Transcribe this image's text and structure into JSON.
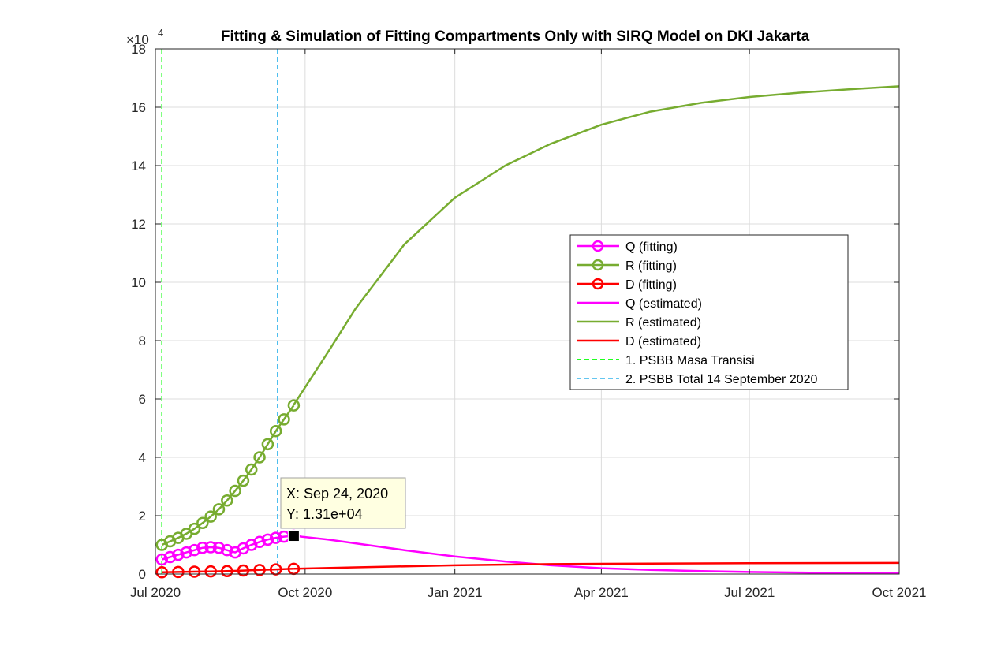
{
  "chart_data": {
    "type": "line",
    "title": "Fitting & Simulation of Fitting Compartments Only with SIRQ Model on DKI Jakarta",
    "xlabel": "",
    "ylabel": "",
    "y_exponent_label": "×10",
    "y_exponent_power": "4",
    "x_range": [
      "2020-07-01",
      "2021-10-01"
    ],
    "y_range": [
      0,
      18
    ],
    "x_ticks": [
      {
        "date": "2020-07-01",
        "label": "Jul 2020"
      },
      {
        "date": "2020-10-01",
        "label": "Oct 2020"
      },
      {
        "date": "2021-01-01",
        "label": "Jan 2021"
      },
      {
        "date": "2021-04-01",
        "label": "Apr 2021"
      },
      {
        "date": "2021-07-01",
        "label": "Jul 2021"
      },
      {
        "date": "2021-10-01",
        "label": "Oct 2021"
      }
    ],
    "y_ticks": [
      0,
      2,
      4,
      6,
      8,
      10,
      12,
      14,
      16,
      18
    ],
    "grid": true,
    "legend_position": "right",
    "colors": {
      "Q": "#ff00ff",
      "R": "#77ac30",
      "D": "#ff0000",
      "psbb1": "#00ff00",
      "psbb2": "#4dbeee",
      "axis": "#262626",
      "grid": "#dcdcdc",
      "tooltip_bg": "#ffffe1"
    },
    "vertical_lines": [
      {
        "name": "1. PSBB Masa Transisi",
        "date": "2020-07-05"
      },
      {
        "name": "2. PSBB Total 14 September 2020",
        "date": "2020-09-14"
      }
    ],
    "series": [
      {
        "name": "Q (fitting)",
        "style": "marker-line",
        "x": [
          "2020-07-05",
          "2020-07-10",
          "2020-07-15",
          "2020-07-20",
          "2020-07-25",
          "2020-07-30",
          "2020-08-04",
          "2020-08-09",
          "2020-08-14",
          "2020-08-19",
          "2020-08-24",
          "2020-08-29",
          "2020-09-03",
          "2020-09-08",
          "2020-09-13",
          "2020-09-18",
          "2020-09-24"
        ],
        "values": [
          0.5,
          0.58,
          0.66,
          0.74,
          0.82,
          0.9,
          0.92,
          0.9,
          0.82,
          0.74,
          0.88,
          1.0,
          1.1,
          1.18,
          1.24,
          1.28,
          1.31
        ]
      },
      {
        "name": "R (fitting)",
        "style": "marker-line",
        "x": [
          "2020-07-05",
          "2020-07-10",
          "2020-07-15",
          "2020-07-20",
          "2020-07-25",
          "2020-07-30",
          "2020-08-04",
          "2020-08-09",
          "2020-08-14",
          "2020-08-19",
          "2020-08-24",
          "2020-08-29",
          "2020-09-03",
          "2020-09-08",
          "2020-09-13",
          "2020-09-18",
          "2020-09-24"
        ],
        "values": [
          1.0,
          1.12,
          1.24,
          1.38,
          1.55,
          1.75,
          1.97,
          2.22,
          2.52,
          2.85,
          3.2,
          3.58,
          4.0,
          4.45,
          4.9,
          5.3,
          5.78
        ]
      },
      {
        "name": "D (fitting)",
        "style": "marker-line",
        "x": [
          "2020-07-05",
          "2020-07-15",
          "2020-07-25",
          "2020-08-04",
          "2020-08-14",
          "2020-08-24",
          "2020-09-03",
          "2020-09-13",
          "2020-09-24"
        ],
        "values": [
          0.06,
          0.07,
          0.08,
          0.09,
          0.1,
          0.12,
          0.14,
          0.16,
          0.18
        ]
      },
      {
        "name": "Q (estimated)",
        "style": "line",
        "x": [
          "2020-09-24",
          "2020-10-15",
          "2020-11-01",
          "2020-12-01",
          "2021-01-01",
          "2021-02-01",
          "2021-03-01",
          "2021-04-01",
          "2021-05-01",
          "2021-06-01",
          "2021-07-01",
          "2021-08-01",
          "2021-09-01",
          "2021-10-01"
        ],
        "values": [
          1.31,
          1.18,
          1.05,
          0.82,
          0.6,
          0.43,
          0.3,
          0.2,
          0.14,
          0.1,
          0.07,
          0.05,
          0.03,
          0.02
        ]
      },
      {
        "name": "R (estimated)",
        "style": "line",
        "x": [
          "2020-09-24",
          "2020-10-15",
          "2020-11-01",
          "2020-12-01",
          "2021-01-01",
          "2021-02-01",
          "2021-03-01",
          "2021-04-01",
          "2021-05-01",
          "2021-06-01",
          "2021-07-01",
          "2021-08-01",
          "2021-09-01",
          "2021-10-01"
        ],
        "values": [
          5.8,
          7.6,
          9.1,
          11.3,
          12.9,
          14.0,
          14.75,
          15.4,
          15.85,
          16.15,
          16.35,
          16.5,
          16.62,
          16.72
        ]
      },
      {
        "name": "D (estimated)",
        "style": "line",
        "x": [
          "2020-09-24",
          "2020-11-01",
          "2021-01-01",
          "2021-03-01",
          "2021-05-01",
          "2021-07-01",
          "2021-10-01"
        ],
        "values": [
          0.18,
          0.23,
          0.3,
          0.34,
          0.36,
          0.37,
          0.38
        ]
      }
    ],
    "datatip": {
      "x_label": "X: Sep 24, 2020",
      "y_label": "Y: 1.31e+04",
      "date": "2020-09-24",
      "value": 1.31
    }
  }
}
